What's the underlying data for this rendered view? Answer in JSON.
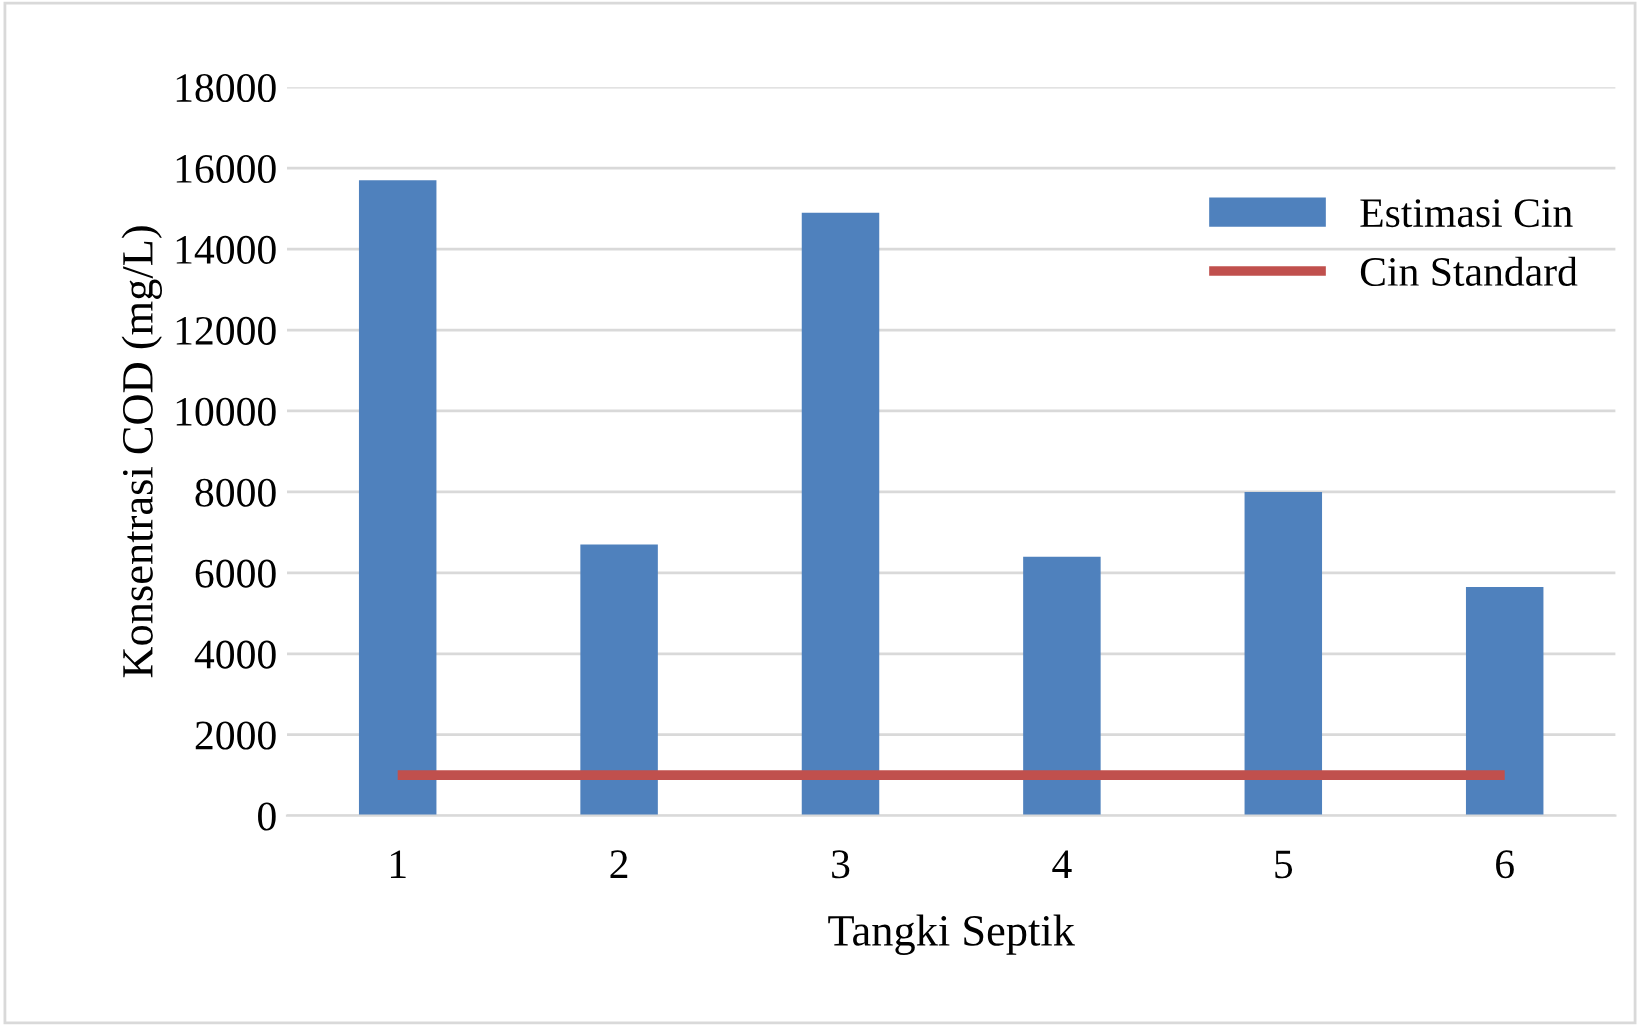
{
  "chart_data": {
    "type": "bar",
    "xlabel": "Tangki Septik",
    "ylabel": "Konsentrasi COD (mg/L)",
    "categories": [
      "1",
      "2",
      "3",
      "4",
      "5",
      "6"
    ],
    "series": [
      {
        "name": "Estimasi Cin",
        "color": "#4f81bd",
        "values": [
          15700,
          6700,
          14900,
          6400,
          8000,
          5650
        ]
      },
      {
        "name": "Cin Standard",
        "type": "line",
        "color": "#c0504d",
        "values": [
          1000,
          1000,
          1000,
          1000,
          1000,
          1000
        ]
      }
    ],
    "ylim": [
      0,
      18000
    ],
    "yticks": [
      0,
      2000,
      4000,
      6000,
      8000,
      10000,
      12000,
      14000,
      16000,
      18000
    ],
    "grid": "y",
    "legend": "top right",
    "marker": "none"
  }
}
